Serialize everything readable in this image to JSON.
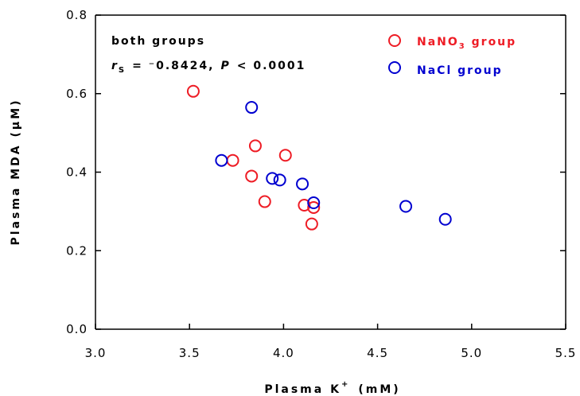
{
  "chart_data": {
    "type": "scatter",
    "xlabel": "Plasma K",
    "xlabel_sup": "+",
    "xlabel_unit": "(mM)",
    "ylabel": "Plasma MDA (μM)",
    "xlim": [
      3.0,
      5.5
    ],
    "ylim": [
      0.0,
      0.8
    ],
    "x_ticks": [
      "3.0",
      "3.5",
      "4.0",
      "4.5",
      "5.0",
      "5.5"
    ],
    "y_ticks": [
      "0.0",
      "0.2",
      "0.4",
      "0.6",
      "0.8"
    ],
    "grid": false,
    "legend_position": "top-right",
    "annotation": {
      "line1": "both groups",
      "r_symbol": "r",
      "r_sub": "S",
      "r_value": "= ⁻0.8424,",
      "p_symbol": "P",
      "p_value": "< 0.0001"
    },
    "series": [
      {
        "name": "NaNO3 group",
        "name_main": "NaNO",
        "name_sub": "3",
        "name_tail": " group",
        "color": "#ee1c25",
        "marker": "open-circle",
        "points": [
          [
            3.52,
            0.606
          ],
          [
            3.73,
            0.43
          ],
          [
            3.85,
            0.467
          ],
          [
            3.83,
            0.39
          ],
          [
            3.9,
            0.325
          ],
          [
            4.01,
            0.443
          ],
          [
            4.11,
            0.316
          ],
          [
            4.16,
            0.31
          ],
          [
            4.15,
            0.268
          ]
        ]
      },
      {
        "name": "NaCl group",
        "name_main": "NaCl group",
        "color": "#0000d0",
        "marker": "open-circle",
        "points": [
          [
            3.67,
            0.43
          ],
          [
            3.83,
            0.565
          ],
          [
            3.94,
            0.384
          ],
          [
            3.98,
            0.38
          ],
          [
            4.1,
            0.37
          ],
          [
            4.16,
            0.322
          ],
          [
            4.65,
            0.313
          ],
          [
            4.86,
            0.28
          ]
        ]
      }
    ]
  }
}
